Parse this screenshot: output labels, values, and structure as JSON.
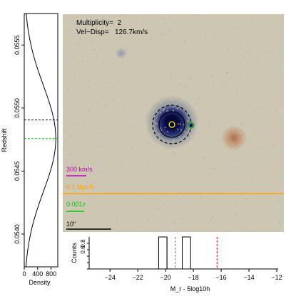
{
  "info": {
    "multiplicity_label": "Multiplicity=",
    "multiplicity_value": "2",
    "veldisp_label": "Vel−Disp=",
    "veldisp_value": "126.7km/s"
  },
  "scale_bars": {
    "velocity": "300 km/s",
    "distance": "0.1 Mpc/h",
    "redshift": "0.001z",
    "angular": "10\""
  },
  "colors": {
    "velocity_bar": "#c000c0",
    "distance_bar": "#ffa500",
    "redshift_bar": "#00cc00",
    "member_marker": "#ffff00",
    "hist_mean_line": "#00cc00",
    "hist_red_line": "#dd0000",
    "density_mean_line": "#00cc00"
  },
  "chart_data": [
    {
      "type": "line",
      "xlabel": "Density",
      "ylabel": "Redshift",
      "x_ticks": [
        0,
        400,
        800
      ],
      "xlim": [
        0,
        1000
      ],
      "y_ticks": [
        0.054,
        0.0545,
        0.055,
        0.0555
      ],
      "y_tick_labels": [
        "0.0540",
        "0.0545",
        "0.0550",
        "0.0555"
      ],
      "ylim": [
        0.05374,
        0.05575
      ],
      "series": [
        {
          "mean": 0.054758,
          "sigma": 0.000422,
          "peak": 940
        }
      ],
      "reference_lines": [
        {
          "y": 0.054906,
          "style": "dashed",
          "color": "#000000"
        },
        {
          "y": 0.054758,
          "style": "dashed",
          "color": "#00cc00"
        }
      ]
    },
    {
      "type": "bar",
      "xlabel": "M_r - 5log10h",
      "ylabel": "Counts",
      "xlim": [
        -25.5,
        -12
      ],
      "x_ticks": [
        -24,
        -22,
        -20,
        -18,
        -16,
        -14,
        -12
      ],
      "y_ticks": [
        0,
        0.2,
        0.4,
        0.6,
        0.8
      ],
      "y_tick_labels": [
        "0.0",
        "0.2",
        "0.4",
        "0.6",
        "0.8"
      ],
      "ylim": [
        0,
        1
      ],
      "bins": [
        {
          "x0": -20.5,
          "x1": -19.9,
          "count": 1
        },
        {
          "x0": -18.8,
          "x1": -18.2,
          "count": 1
        }
      ],
      "reference_lines": [
        {
          "x": -19.9,
          "style": "solid",
          "color": "#000000"
        },
        {
          "x": -19.3,
          "style": "dashed",
          "color": "#00cc00"
        },
        {
          "x": -16.3,
          "style": "dashed",
          "color": "#dd0000"
        }
      ]
    }
  ]
}
